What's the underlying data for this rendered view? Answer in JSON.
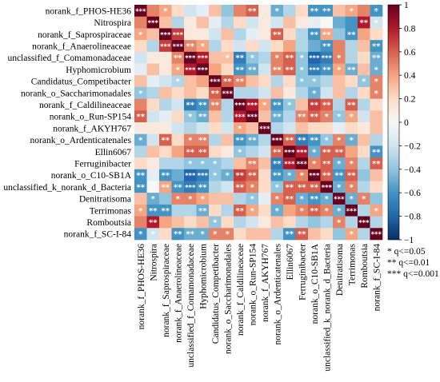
{
  "chart_data": {
    "type": "heatmap",
    "title": "",
    "taxa": [
      "norank_f_PHOS-HE36",
      "Nitrospira",
      "norank_f_Saprospiraceae",
      "norank_f_Anaerolineaceae",
      "unclassified_f_Comamonadaceae",
      "Hyphomicrobium",
      "Candidatus_Competibacter",
      "norank_o_Saccharimonadales",
      "norank_f_Caldilineaceae",
      "norank_o_Run-SP154",
      "norank_f_AKYH767",
      "norank_o_Ardenticatenales",
      "Ellin6067",
      "Ferruginibacter",
      "norank_o_C10-SB1A",
      "unclassified_k_norank_d_Bacteria",
      "Denitratisoma",
      "Terrimonas",
      "Romboutsia",
      "norank_f_SC-I-84"
    ],
    "values": [
      [
        1.0,
        0.5,
        0.4,
        0.2,
        -0.2,
        -0.1,
        0.3,
        -0.4,
        0.5,
        0.6,
        0.1,
        -0.5,
        -0.3,
        0.2,
        -0.6,
        -0.6,
        0.3,
        0.4,
        0.5,
        -0.6
      ],
      [
        0.5,
        1.0,
        0.3,
        -0.3,
        0.1,
        0.3,
        -0.1,
        -0.3,
        0.2,
        -0.2,
        0.1,
        -0.2,
        0.3,
        0.1,
        -0.1,
        0.0,
        -0.5,
        -0.6,
        0.8,
        -0.2
      ],
      [
        0.4,
        0.3,
        1.0,
        0.7,
        0.1,
        0.1,
        -0.2,
        0.3,
        -0.3,
        -0.1,
        0.1,
        0.6,
        0.2,
        -0.3,
        -0.6,
        0.4,
        -0.4,
        -0.6,
        0.4,
        0.2
      ],
      [
        0.2,
        -0.3,
        0.7,
        1.0,
        0.5,
        0.4,
        -0.3,
        0.2,
        -0.2,
        0.2,
        -0.2,
        0.2,
        0.4,
        -0.3,
        -0.5,
        -0.6,
        0.5,
        -0.3,
        0.3,
        -0.6
      ],
      [
        -0.2,
        0.1,
        0.1,
        0.5,
        1.0,
        0.8,
        0.3,
        0.3,
        -0.7,
        -0.4,
        -0.3,
        0.5,
        0.6,
        -0.4,
        -0.8,
        -0.7,
        0.5,
        -0.3,
        0.2,
        -0.5
      ],
      [
        -0.1,
        0.3,
        0.1,
        0.4,
        0.8,
        1.0,
        0.4,
        0.2,
        -0.6,
        -0.5,
        -0.2,
        0.5,
        0.6,
        -0.4,
        -0.7,
        -0.6,
        0.4,
        -0.5,
        0.3,
        -0.5
      ],
      [
        0.3,
        -0.1,
        -0.2,
        -0.3,
        0.3,
        0.4,
        1.0,
        0.6,
        0.5,
        0.3,
        0.2,
        -0.3,
        0.2,
        -0.4,
        -0.4,
        -0.3,
        0.3,
        0.2,
        -0.4,
        0.5
      ],
      [
        -0.4,
        -0.3,
        0.3,
        0.2,
        0.3,
        0.2,
        0.6,
        1.0,
        -0.3,
        -0.3,
        -0.2,
        0.3,
        0.1,
        -0.3,
        -0.5,
        -0.2,
        0.3,
        -0.3,
        0.2,
        0.5
      ],
      [
        0.5,
        0.2,
        -0.3,
        -0.2,
        -0.7,
        -0.6,
        0.5,
        -0.3,
        1.0,
        0.8,
        0.4,
        -0.6,
        -0.4,
        0.3,
        0.7,
        0.6,
        -0.3,
        0.6,
        -0.3,
        0.2
      ],
      [
        0.6,
        -0.2,
        -0.1,
        0.2,
        -0.4,
        -0.5,
        0.3,
        -0.3,
        0.8,
        1.0,
        0.3,
        -0.5,
        -0.3,
        0.5,
        0.6,
        0.5,
        -0.4,
        0.4,
        -0.2,
        0.3
      ],
      [
        0.1,
        0.1,
        0.1,
        -0.2,
        -0.3,
        -0.2,
        0.2,
        -0.2,
        0.4,
        0.3,
        1.0,
        -0.3,
        -0.2,
        0.3,
        0.2,
        0.2,
        -0.1,
        0.2,
        0.1,
        0.3
      ],
      [
        -0.5,
        -0.2,
        0.6,
        0.2,
        0.5,
        0.5,
        -0.3,
        0.3,
        -0.6,
        -0.5,
        -0.3,
        1.0,
        0.6,
        -0.7,
        -0.6,
        -0.4,
        0.5,
        -0.5,
        0.3,
        -0.3
      ],
      [
        -0.3,
        0.3,
        0.2,
        0.4,
        0.6,
        0.6,
        0.2,
        0.1,
        -0.4,
        -0.3,
        -0.2,
        0.6,
        1.0,
        0.8,
        -0.5,
        0.6,
        0.6,
        0.4,
        0.2,
        -0.6
      ],
      [
        0.2,
        0.1,
        -0.3,
        -0.3,
        -0.4,
        -0.4,
        -0.4,
        -0.3,
        0.3,
        0.5,
        0.3,
        -0.7,
        0.8,
        1.0,
        0.5,
        0.6,
        -0.5,
        0.5,
        -0.3,
        0.6
      ],
      [
        -0.6,
        -0.1,
        -0.6,
        -0.5,
        -0.8,
        -0.7,
        -0.4,
        -0.5,
        0.7,
        0.6,
        0.2,
        -0.6,
        -0.5,
        0.5,
        1.0,
        0.6,
        -0.6,
        0.6,
        -0.4,
        0.3
      ],
      [
        -0.6,
        0.0,
        0.4,
        -0.6,
        -0.7,
        -0.6,
        -0.3,
        -0.2,
        0.6,
        0.5,
        0.2,
        -0.4,
        0.6,
        0.6,
        0.6,
        1.0,
        -0.5,
        0.5,
        -0.3,
        0.2
      ],
      [
        0.3,
        -0.5,
        -0.4,
        0.5,
        0.5,
        0.4,
        0.3,
        0.3,
        -0.3,
        -0.4,
        -0.1,
        0.5,
        0.6,
        -0.5,
        -0.6,
        -0.5,
        1.0,
        -0.5,
        0.5,
        -0.4
      ],
      [
        0.4,
        -0.6,
        -0.6,
        -0.3,
        -0.3,
        -0.5,
        0.2,
        -0.3,
        0.6,
        0.4,
        0.2,
        -0.5,
        0.4,
        0.5,
        0.6,
        0.5,
        -0.5,
        1.0,
        -0.3,
        0.4
      ],
      [
        0.5,
        0.8,
        0.4,
        0.3,
        0.2,
        0.3,
        -0.4,
        0.2,
        -0.3,
        -0.2,
        0.1,
        0.3,
        0.2,
        -0.3,
        -0.4,
        -0.3,
        0.5,
        -0.3,
        1.0,
        -0.3
      ],
      [
        -0.6,
        -0.2,
        0.2,
        -0.6,
        -0.5,
        -0.5,
        0.5,
        0.5,
        0.2,
        0.3,
        0.3,
        -0.3,
        -0.6,
        0.6,
        0.3,
        0.2,
        -0.4,
        0.4,
        -0.3,
        1.0
      ]
    ],
    "significance": [
      [
        "***",
        "",
        "*",
        "",
        "",
        "",
        "",
        "",
        "",
        "**",
        "",
        "*",
        "",
        "",
        "**",
        "**",
        "",
        "*",
        "",
        "*"
      ],
      [
        "",
        "***",
        "",
        "",
        "",
        "",
        "",
        "",
        "",
        "",
        "",
        "",
        "",
        "",
        "",
        "",
        "",
        "",
        "**",
        "*"
      ],
      [
        "*",
        "",
        "***",
        "***",
        "",
        "",
        "",
        "",
        "",
        "",
        "",
        "**",
        "",
        "",
        "**",
        "**",
        "",
        "**",
        "",
        ""
      ],
      [
        "",
        "",
        "***",
        "***",
        "**",
        "*",
        "",
        "",
        "",
        "",
        "",
        "",
        "",
        "",
        "",
        "**",
        "",
        "",
        "",
        "**"
      ],
      [
        "",
        "",
        "",
        "**",
        "***",
        "***",
        "",
        "*",
        "**",
        "*",
        "",
        "*",
        "**",
        "*",
        "***",
        "***",
        "*",
        "",
        "",
        "**"
      ],
      [
        "",
        "",
        "",
        "*",
        "***",
        "***",
        "",
        "",
        "**",
        "**",
        "",
        "**",
        "**",
        "*",
        "***",
        "**",
        "*",
        "**",
        "",
        "*"
      ],
      [
        "",
        "",
        "",
        "*",
        "",
        "",
        "***",
        "**",
        "**",
        "",
        "",
        "",
        "",
        "*",
        "*",
        "",
        "",
        "",
        "*",
        "*"
      ],
      [
        "*",
        "",
        "",
        "",
        "",
        "",
        "**",
        "***",
        "",
        "",
        "",
        "",
        "",
        "",
        "*",
        "",
        "",
        "",
        "",
        "*"
      ],
      [
        "",
        "",
        "",
        "",
        "**",
        "**",
        "**",
        "",
        "***",
        "***",
        "*",
        "**",
        "*",
        "",
        "**",
        "**",
        "",
        "**",
        "",
        ""
      ],
      [
        "**",
        "",
        "",
        "",
        "*",
        "**",
        "",
        "",
        "***",
        "***",
        "",
        "**",
        "",
        "**",
        "**",
        "*",
        "*",
        "*",
        "",
        ""
      ],
      [
        "",
        "",
        "",
        "",
        "",
        "",
        "",
        "",
        "*",
        "",
        "***",
        "",
        "",
        "",
        "",
        "",
        "",
        "",
        "",
        ""
      ],
      [
        "*",
        "",
        "**",
        "",
        "*",
        "**",
        "",
        "",
        "**",
        "**",
        "",
        "***",
        "**",
        "**",
        "**",
        "*",
        "*",
        "*",
        "",
        ""
      ],
      [
        "",
        "",
        "",
        "",
        "**",
        "**",
        "",
        "",
        "*",
        "",
        "",
        "**",
        "***",
        "***",
        "*",
        "**",
        "**",
        "",
        "",
        "**"
      ],
      [
        "",
        "",
        "",
        "",
        "*",
        "*",
        "*",
        "",
        "",
        "**",
        "",
        "**",
        "***",
        "***",
        "*",
        "**",
        "*",
        "*",
        "",
        "**"
      ],
      [
        "**",
        "",
        "**",
        "",
        "***",
        "***",
        "*",
        "*",
        "**",
        "**",
        "",
        "**",
        "*",
        "*",
        "***",
        "**",
        "**",
        "**",
        "",
        ""
      ],
      [
        "**",
        "",
        "**",
        "**",
        "***",
        "**",
        "",
        "",
        "**",
        "*",
        "",
        "*",
        "**",
        "**",
        "**",
        "***",
        "*",
        "*",
        "",
        ""
      ],
      [
        "",
        "*",
        "",
        "*",
        "*",
        "*",
        "",
        "",
        "",
        "*",
        "",
        "*",
        "**",
        "*",
        "**",
        "*",
        "***",
        "*",
        "*",
        ""
      ],
      [
        "*",
        "**",
        "**",
        "",
        "",
        "**",
        "",
        "",
        "**",
        "*",
        "",
        "*",
        "",
        "*",
        "**",
        "*",
        "*",
        "***",
        "",
        "*"
      ],
      [
        "",
        "**",
        "",
        "",
        "",
        "",
        "*",
        "",
        "",
        "",
        "",
        "",
        "",
        "",
        "",
        "",
        "*",
        "",
        "***",
        ""
      ],
      [
        "*",
        "*",
        "",
        "**",
        "**",
        "*",
        "*",
        "*",
        "",
        "",
        "",
        "",
        "**",
        "**",
        "",
        "",
        "",
        "*",
        "",
        "***"
      ]
    ],
    "colorbar": {
      "range": [
        -1,
        1
      ],
      "ticks": [
        "1",
        "0.8",
        "0.6",
        "0.4",
        "0.2",
        "0",
        "−0.2",
        "−0.4",
        "−0.6",
        "−0.8",
        "−1"
      ],
      "colors": [
        "#053061",
        "#2166ac",
        "#4393c3",
        "#92c5de",
        "#d1e5f0",
        "#f7f7f7",
        "#fddbc7",
        "#f4a582",
        "#d6604d",
        "#b2182b",
        "#67001f"
      ]
    },
    "legend": [
      "* q<=0.05",
      "** q<=0.01",
      "*** q<=0.001"
    ],
    "grid": false
  }
}
